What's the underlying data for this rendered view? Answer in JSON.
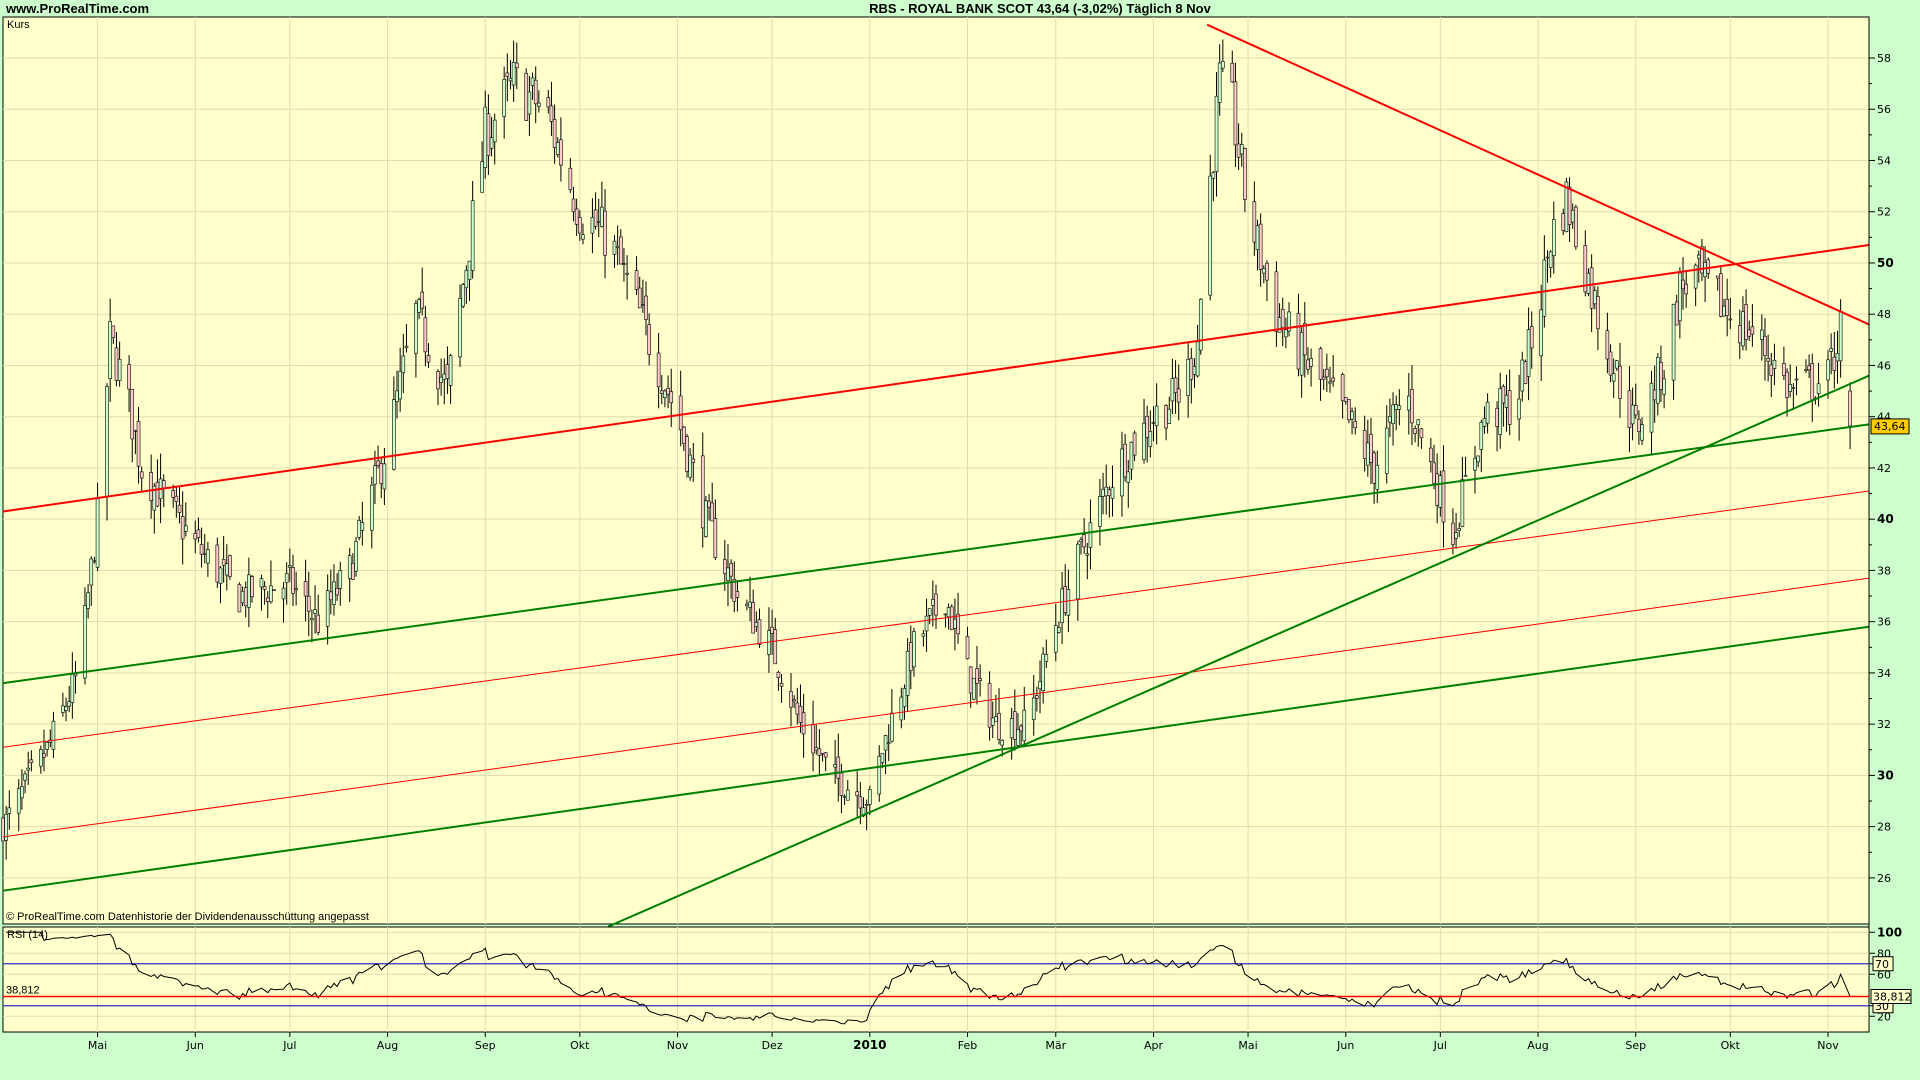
{
  "header": {
    "site": "www.ProRealTime.com",
    "title": "RBS - ROYAL BANK SCOT    43,64 (-3,02%)    Täglich  8 Nov"
  },
  "colors": {
    "background": "#ccffcc",
    "panel": "#ffffcc",
    "grid": "#e0dcb0",
    "up": "#ccffcc",
    "down": "#ffcccc",
    "red_line": "#ff0000",
    "green_line": "#008000",
    "rsi_band": "#3333cc",
    "price_tag": "#ffcc00"
  },
  "chart_data": [
    {
      "type": "candlestick",
      "panel_label": "Kurs",
      "footnote": "© ProRealTime.com  Datenhistorie der Dividendenausschüttung angepasst",
      "last_price_label": "43,64",
      "ylim": [
        24.2,
        59.6
      ],
      "xlim": [
        "2009-04-01",
        "2010-11-14"
      ],
      "grid": true,
      "yticks": [
        26,
        28,
        30,
        32,
        34,
        36,
        38,
        40,
        42,
        44,
        46,
        48,
        50,
        52,
        54,
        56,
        58
      ],
      "ytick_labels": [
        "26",
        "28",
        "30",
        "32",
        "34",
        "36",
        "38",
        "40",
        "42",
        "44",
        "46",
        "48",
        "50",
        "52",
        "54",
        "56",
        "58"
      ],
      "bold_yticks": [
        30,
        40,
        50
      ],
      "xticks": [
        {
          "date": "2009-05-01",
          "label": "Mai"
        },
        {
          "date": "2009-06-01",
          "label": "Jun"
        },
        {
          "date": "2009-07-01",
          "label": "Jul"
        },
        {
          "date": "2009-08-01",
          "label": "Aug"
        },
        {
          "date": "2009-09-01",
          "label": "Sep"
        },
        {
          "date": "2009-10-01",
          "label": "Okt"
        },
        {
          "date": "2009-11-01",
          "label": "Nov"
        },
        {
          "date": "2009-12-01",
          "label": "Dez"
        },
        {
          "date": "2010-01-01",
          "label": "2010"
        },
        {
          "date": "2010-02-01",
          "label": "Feb"
        },
        {
          "date": "2010-03-01",
          "label": "Mär"
        },
        {
          "date": "2010-04-01",
          "label": "Apr"
        },
        {
          "date": "2010-05-01",
          "label": "Mai"
        },
        {
          "date": "2010-06-01",
          "label": "Jun"
        },
        {
          "date": "2010-07-01",
          "label": "Jul"
        },
        {
          "date": "2010-08-01",
          "label": "Aug"
        },
        {
          "date": "2010-09-01",
          "label": "Sep"
        },
        {
          "date": "2010-10-01",
          "label": "Okt"
        },
        {
          "date": "2010-11-01",
          "label": "Nov"
        }
      ],
      "approx_closes": [
        [
          "2009-04-01",
          28
        ],
        [
          "2009-04-10",
          30
        ],
        [
          "2009-04-15",
          31
        ],
        [
          "2009-04-25",
          34
        ],
        [
          "2009-05-01",
          40
        ],
        [
          "2009-05-05",
          47
        ],
        [
          "2009-05-10",
          45
        ],
        [
          "2009-05-15",
          42
        ],
        [
          "2009-06-01",
          39
        ],
        [
          "2009-06-15",
          37
        ],
        [
          "2009-07-01",
          37.5
        ],
        [
          "2009-07-10",
          36
        ],
        [
          "2009-07-20",
          38
        ],
        [
          "2009-08-01",
          43
        ],
        [
          "2009-08-10",
          48
        ],
        [
          "2009-08-20",
          45
        ],
        [
          "2009-09-01",
          55
        ],
        [
          "2009-09-10",
          57
        ],
        [
          "2009-09-20",
          56
        ],
        [
          "2009-10-01",
          52
        ],
        [
          "2009-10-10",
          51
        ],
        [
          "2009-10-20",
          48
        ],
        [
          "2009-11-01",
          44
        ],
        [
          "2009-11-10",
          40
        ],
        [
          "2009-11-20",
          37
        ],
        [
          "2009-12-01",
          35
        ],
        [
          "2009-12-10",
          32
        ],
        [
          "2009-12-20",
          30
        ],
        [
          "2010-01-01",
          29
        ],
        [
          "2010-01-05",
          31
        ],
        [
          "2010-01-15",
          35
        ],
        [
          "2010-01-25",
          37
        ],
        [
          "2010-02-01",
          34
        ],
        [
          "2010-02-10",
          32
        ],
        [
          "2010-02-20",
          32
        ],
        [
          "2010-03-01",
          36
        ],
        [
          "2010-03-10",
          39
        ],
        [
          "2010-03-20",
          42
        ],
        [
          "2010-04-01",
          44
        ],
        [
          "2010-04-10",
          45
        ],
        [
          "2010-04-15",
          47
        ],
        [
          "2010-04-18",
          52
        ],
        [
          "2010-04-22",
          57
        ],
        [
          "2010-04-26",
          56
        ],
        [
          "2010-05-01",
          52
        ],
        [
          "2010-05-10",
          48
        ],
        [
          "2010-05-20",
          46
        ],
        [
          "2010-06-01",
          44
        ],
        [
          "2010-06-10",
          42
        ],
        [
          "2010-06-20",
          45
        ],
        [
          "2010-07-01",
          41
        ],
        [
          "2010-07-05",
          39.5
        ],
        [
          "2010-07-15",
          44
        ],
        [
          "2010-07-25",
          44.5
        ],
        [
          "2010-08-01",
          48
        ],
        [
          "2010-08-05",
          51
        ],
        [
          "2010-08-10",
          52.5
        ],
        [
          "2010-08-20",
          48
        ],
        [
          "2010-08-25",
          46
        ],
        [
          "2010-09-01",
          43.5
        ],
        [
          "2010-09-10",
          46
        ],
        [
          "2010-09-15",
          49
        ],
        [
          "2010-09-20",
          49.5
        ],
        [
          "2010-10-01",
          48
        ],
        [
          "2010-10-10",
          47
        ],
        [
          "2010-10-20",
          45
        ],
        [
          "2010-11-01",
          45.5
        ],
        [
          "2010-11-05",
          47.5
        ],
        [
          "2010-11-08",
          43.64
        ]
      ],
      "trendlines": [
        {
          "color": "red",
          "weight": "thick",
          "from": [
            "2010-04-18",
            59.3
          ],
          "to": [
            "2010-11-14",
            47.6
          ]
        },
        {
          "color": "red",
          "weight": "thick",
          "from": [
            "2009-04-01",
            40.3
          ],
          "to": [
            "2010-11-14",
            50.7
          ]
        },
        {
          "color": "red",
          "weight": "thin",
          "from": [
            "2009-04-01",
            31.1
          ],
          "to": [
            "2010-11-14",
            41.1
          ]
        },
        {
          "color": "red",
          "weight": "thin",
          "from": [
            "2009-04-01",
            27.6
          ],
          "to": [
            "2010-11-14",
            37.7
          ]
        },
        {
          "color": "green",
          "weight": "thick",
          "from": [
            "2009-04-01",
            33.6
          ],
          "to": [
            "2010-11-14",
            43.7
          ]
        },
        {
          "color": "green",
          "weight": "thick",
          "from": [
            "2009-04-01",
            25.5
          ],
          "to": [
            "2010-11-14",
            35.8
          ]
        },
        {
          "color": "green",
          "weight": "thick",
          "from": [
            "2009-10-10",
            24.1
          ],
          "to": [
            "2010-11-14",
            45.6
          ]
        }
      ]
    },
    {
      "type": "line",
      "panel_label": "RSI (14)",
      "last_value_label": "38,812",
      "ylim": [
        5,
        105
      ],
      "yticks": [
        20,
        30,
        60,
        70,
        80,
        100
      ],
      "ytick_labels": [
        "20",
        "30",
        "60",
        "70",
        "80",
        "100"
      ],
      "bands": [
        70,
        30
      ],
      "bands_labels": [
        "70",
        "30"
      ],
      "current_value": 38.812
    }
  ]
}
